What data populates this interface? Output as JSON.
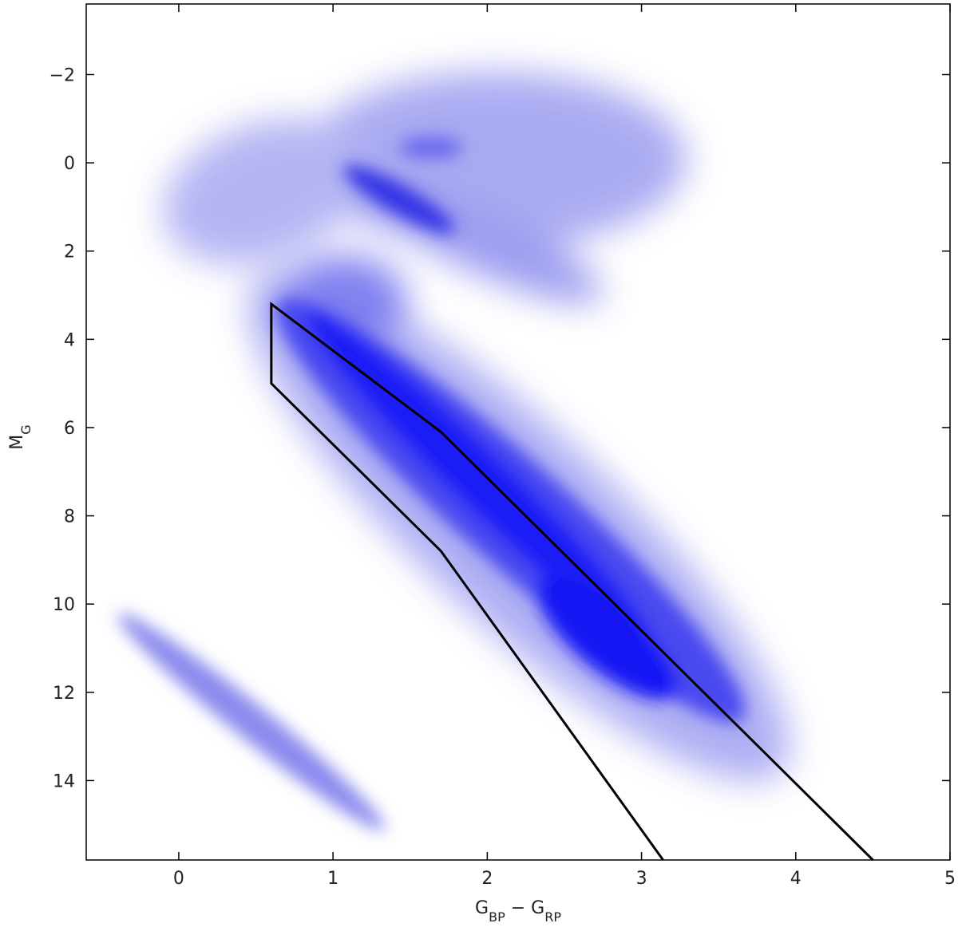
{
  "chart_data": {
    "type": "line",
    "xlabel": [
      {
        "text": "G"
      },
      {
        "text": "BP",
        "sub": true
      },
      {
        "text": " − "
      },
      {
        "text": "G"
      },
      {
        "text": "RP",
        "sub": true
      }
    ],
    "ylabel": [
      {
        "text": "M"
      },
      {
        "text": "G",
        "sub": true
      }
    ],
    "xlim": [
      -0.6,
      5.0
    ],
    "ylim": [
      15.8,
      -3.6
    ],
    "xticks": [
      0,
      1,
      2,
      3,
      4,
      5
    ],
    "yticks": [
      {
        "value": -2,
        "label": "−2"
      },
      0,
      2,
      4,
      6,
      8,
      10,
      12,
      14
    ],
    "series": [
      {
        "color": "#000000",
        "x": [
          3.14,
          1.7,
          0.6,
          0.6,
          1.7,
          4.5
        ],
        "values": [
          15.8,
          8.8,
          5.0,
          3.2,
          6.1,
          15.8
        ]
      }
    ]
  }
}
